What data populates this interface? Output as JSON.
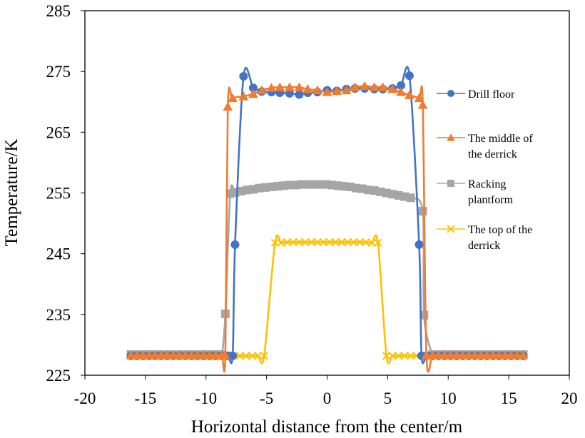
{
  "chart_data": {
    "type": "line",
    "title": "",
    "xlabel": "Horizontal distance from the center/m",
    "ylabel": "Temperature/K",
    "xlim": [
      -20,
      20
    ],
    "ylim": [
      225,
      285
    ],
    "xticks": [
      -20,
      -15,
      -10,
      -5,
      0,
      5,
      10,
      15,
      20
    ],
    "yticks": [
      225,
      235,
      245,
      255,
      265,
      275,
      285
    ],
    "grid": false,
    "legend_position": "right",
    "series": [
      {
        "name": "Drill floor",
        "legend_lines": [
          "Drill floor"
        ],
        "color": "#4472C4",
        "marker": "circle",
        "x": [
          -16.2,
          -15.7,
          -15.2,
          -14.7,
          -14.2,
          -13.7,
          -13.2,
          -12.7,
          -12.2,
          -11.7,
          -11.2,
          -10.7,
          -10.2,
          -9.7,
          -9.2,
          -8.7,
          -8.2,
          -7.8,
          -7.6,
          -6.9,
          -6.1,
          -5.4,
          -4.6,
          -3.9,
          -3.1,
          -2.3,
          -1.6,
          -0.8,
          0,
          0.8,
          1.6,
          2.3,
          3.1,
          3.9,
          4.6,
          5.4,
          6.1,
          6.8,
          7.6,
          7.8,
          8.2,
          8.7,
          9.2,
          9.7,
          10.2,
          10.7,
          11.2,
          11.7,
          12.2,
          12.7,
          13.2,
          13.7,
          14.2,
          14.7,
          15.2,
          15.7,
          16.2
        ],
        "y": [
          228.2,
          228.2,
          228.2,
          228.2,
          228.2,
          228.2,
          228.2,
          228.2,
          228.2,
          228.2,
          228.2,
          228.2,
          228.2,
          228.2,
          228.2,
          228.2,
          228.2,
          228.2,
          246.5,
          274.2,
          272.3,
          271.7,
          271.6,
          271.5,
          271.4,
          271.2,
          271.5,
          271.6,
          271.9,
          271.8,
          272.1,
          272.2,
          272.2,
          272.1,
          272.1,
          272.2,
          272.7,
          274.3,
          246.5,
          228.2,
          228.2,
          228.2,
          228.2,
          228.2,
          228.2,
          228.2,
          228.2,
          228.2,
          228.2,
          228.2,
          228.2,
          228.2,
          228.2,
          228.2,
          228.2,
          228.2,
          228.2
        ]
      },
      {
        "name": "The middle of the derrick",
        "legend_lines": [
          "The middle of",
          "the derrick"
        ],
        "color": "#ED7D31",
        "marker": "triangle",
        "x": [
          -16.2,
          -15.7,
          -15.2,
          -14.7,
          -14.2,
          -13.7,
          -13.2,
          -12.7,
          -12.2,
          -11.7,
          -11.2,
          -10.7,
          -10.2,
          -9.7,
          -9.2,
          -8.7,
          -8.4,
          -8.2,
          -7.8,
          -6.9,
          -6.1,
          -5.4,
          -4.6,
          -3.9,
          -3.1,
          -2.3,
          -1.6,
          -0.8,
          0,
          0.8,
          1.6,
          2.3,
          3.1,
          3.9,
          4.6,
          5.4,
          6.1,
          6.8,
          7.6,
          7.9,
          8.2,
          8.7,
          9.2,
          9.7,
          10.2,
          10.7,
          11.2,
          11.7,
          12.2,
          12.7,
          13.2,
          13.7,
          14.2,
          14.7,
          15.2,
          15.7,
          16.2
        ],
        "y": [
          228.3,
          228.3,
          228.3,
          228.3,
          228.3,
          228.3,
          228.3,
          228.3,
          228.3,
          228.3,
          228.3,
          228.3,
          228.3,
          228.3,
          228.3,
          228.3,
          228.3,
          269.2,
          270.6,
          270.9,
          271.3,
          271.9,
          272.3,
          272.4,
          272.4,
          272.4,
          272.1,
          271.9,
          271.6,
          271.8,
          271.9,
          272.4,
          272.6,
          272.4,
          272.4,
          272.1,
          271.6,
          271.1,
          270.6,
          269.5,
          228.3,
          228.3,
          228.3,
          228.3,
          228.3,
          228.3,
          228.3,
          228.3,
          228.3,
          228.3,
          228.3,
          228.3,
          228.3,
          228.3,
          228.3,
          228.3,
          228.3
        ]
      },
      {
        "name": "Racking plantform",
        "legend_lines": [
          "Racking",
          "plantform"
        ],
        "color": "#A5A5A5",
        "marker": "square",
        "x": [
          -16.2,
          -15.7,
          -15.2,
          -14.7,
          -14.2,
          -13.7,
          -13.2,
          -12.7,
          -12.2,
          -11.7,
          -11.2,
          -10.7,
          -10.2,
          -9.7,
          -9.2,
          -8.7,
          -8.4,
          -8.0,
          -7.6,
          -7.1,
          -6.6,
          -6.1,
          -5.6,
          -5.1,
          -4.6,
          -4.1,
          -3.6,
          -3.1,
          -2.6,
          -2.1,
          -1.6,
          -1.1,
          -0.6,
          -0.1,
          0.4,
          0.9,
          1.4,
          1.9,
          2.4,
          2.9,
          3.4,
          3.9,
          4.4,
          4.9,
          5.4,
          5.9,
          6.4,
          6.9,
          7.9,
          8.0,
          8.7,
          9.2,
          9.7,
          10.2,
          10.7,
          11.2,
          11.7,
          12.2,
          12.7,
          13.2,
          13.7,
          14.2,
          14.7,
          15.2,
          15.7,
          16.2
        ],
        "y": [
          228.4,
          228.4,
          228.4,
          228.4,
          228.4,
          228.4,
          228.4,
          228.4,
          228.4,
          228.4,
          228.4,
          228.4,
          228.4,
          228.4,
          228.4,
          228.4,
          235.1,
          254.9,
          255.1,
          255.3,
          255.5,
          255.6,
          255.8,
          255.9,
          256.0,
          256.1,
          256.2,
          256.3,
          256.3,
          256.4,
          256.4,
          256.4,
          256.4,
          256.4,
          256.3,
          256.2,
          256.1,
          256.0,
          255.8,
          255.7,
          255.5,
          255.4,
          255.2,
          255.0,
          254.8,
          254.6,
          254.4,
          254.2,
          252.0,
          234.9,
          228.4,
          228.4,
          228.4,
          228.4,
          228.4,
          228.4,
          228.4,
          228.4,
          228.4,
          228.4,
          228.4,
          228.4,
          228.4,
          228.4,
          228.4,
          228.4
        ]
      },
      {
        "name": "The top of the derrick",
        "legend_lines": [
          "The top of the",
          "derrick"
        ],
        "color": "#FFC000",
        "marker": "x",
        "x": [
          -16.2,
          -15.7,
          -15.2,
          -14.7,
          -14.2,
          -13.7,
          -13.2,
          -12.7,
          -12.2,
          -11.7,
          -11.2,
          -10.7,
          -10.2,
          -9.7,
          -9.2,
          -8.7,
          -8.2,
          -7.7,
          -7.2,
          -6.7,
          -6.2,
          -5.7,
          -5.2,
          -4.3,
          -3.8,
          -3.3,
          -2.8,
          -2.3,
          -1.8,
          -1.3,
          -0.8,
          -0.3,
          0.2,
          0.7,
          1.2,
          1.7,
          2.2,
          2.7,
          3.2,
          3.7,
          4.2,
          4.9,
          5.4,
          5.9,
          6.4,
          6.9,
          7.4,
          7.9,
          8.4,
          8.9,
          9.4,
          9.9,
          10.4,
          10.9,
          11.4,
          11.9,
          12.4,
          12.9,
          13.4,
          13.9,
          14.4,
          14.9,
          15.4,
          15.9,
          16.2
        ],
        "y": [
          228.2,
          228.2,
          228.2,
          228.2,
          228.2,
          228.2,
          228.2,
          228.2,
          228.2,
          228.2,
          228.2,
          228.2,
          228.2,
          228.2,
          228.2,
          228.2,
          228.2,
          228.2,
          228.2,
          228.2,
          228.2,
          228.2,
          228.2,
          246.8,
          246.8,
          246.9,
          246.9,
          246.9,
          246.9,
          246.9,
          246.9,
          246.9,
          246.9,
          246.9,
          246.9,
          246.9,
          246.9,
          246.9,
          246.9,
          246.8,
          246.8,
          228.2,
          228.2,
          228.2,
          228.2,
          228.2,
          228.2,
          228.2,
          228.2,
          228.2,
          228.2,
          228.2,
          228.2,
          228.2,
          228.2,
          228.2,
          228.2,
          228.2,
          228.2,
          228.2,
          228.2,
          228.2,
          228.2,
          228.2,
          228.2
        ]
      }
    ]
  }
}
